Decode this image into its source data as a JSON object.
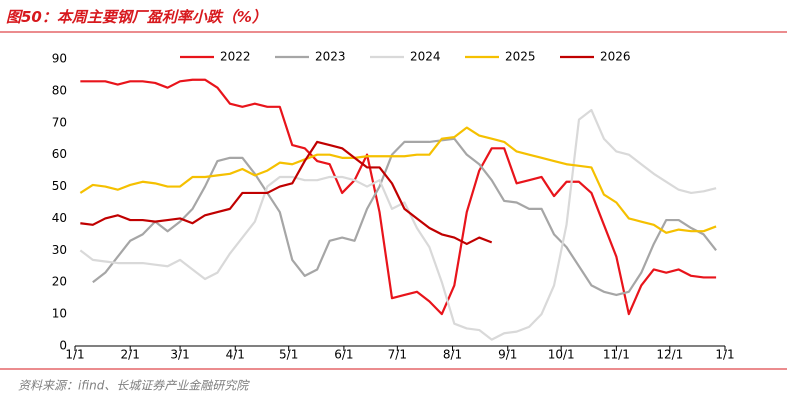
{
  "chart_data": {
    "type": "line",
    "title": "图50：本周主要钢厂盈利率小跌（%）",
    "source": "资料来源：ifind、长城证券产业金融研究院",
    "x": [
      3,
      10,
      17,
      24,
      31,
      38,
      45,
      52,
      59,
      66,
      73,
      80,
      87,
      94,
      101,
      108,
      115,
      122,
      129,
      136,
      143,
      150,
      157,
      164,
      171,
      178,
      185,
      192,
      199,
      206,
      213,
      220,
      227,
      234,
      241,
      248,
      255,
      262,
      269,
      276,
      283,
      290,
      297,
      304,
      311,
      318,
      325,
      332,
      339,
      346,
      353,
      360
    ],
    "xlim": [
      0,
      365
    ],
    "xticks": [
      {
        "value": 0,
        "label": "1/1"
      },
      {
        "value": 31,
        "label": "2/1"
      },
      {
        "value": 59,
        "label": "3/1"
      },
      {
        "value": 90,
        "label": "4/1"
      },
      {
        "value": 120,
        "label": "5/1"
      },
      {
        "value": 151,
        "label": "6/1"
      },
      {
        "value": 181,
        "label": "7/1"
      },
      {
        "value": 212,
        "label": "8/1"
      },
      {
        "value": 243,
        "label": "9/1"
      },
      {
        "value": 273,
        "label": "10/1"
      },
      {
        "value": 304,
        "label": "11/1"
      },
      {
        "value": 334,
        "label": "12/1"
      },
      {
        "value": 365,
        "label": "1/1"
      }
    ],
    "ylim": [
      0,
      90
    ],
    "yticks": [
      0,
      10,
      20,
      30,
      40,
      50,
      60,
      70,
      80,
      90
    ],
    "grid": false,
    "series": [
      {
        "name": "2022",
        "color": "#e8141b",
        "values": [
          83,
          83,
          83,
          82,
          83,
          83,
          82.5,
          81,
          83,
          83.5,
          83.5,
          81,
          76,
          75,
          76,
          75,
          75,
          63,
          62,
          58,
          57,
          48,
          52,
          60,
          42,
          15,
          16,
          17,
          14,
          10,
          19,
          42,
          55,
          62,
          62,
          51,
          52,
          53,
          47,
          51.5,
          51.5,
          48,
          38,
          28,
          10,
          19,
          24,
          23,
          24,
          22,
          21.5,
          21.5
        ]
      },
      {
        "name": "2023",
        "color": "#a6a6a6",
        "values": [
          null,
          20,
          23,
          28,
          33,
          35,
          39,
          36,
          39,
          43,
          50,
          58,
          59,
          59,
          54,
          48,
          42,
          27,
          22,
          24,
          33,
          34,
          33,
          43,
          50,
          60,
          64,
          64,
          64,
          64.5,
          65,
          60,
          57,
          52,
          45.5,
          45,
          43,
          43,
          35,
          31,
          25,
          19,
          17,
          16,
          17,
          23,
          32,
          39.5,
          39.5,
          37,
          35,
          30
        ]
      },
      {
        "name": "2024",
        "color": "#d9d9d9",
        "values": [
          30,
          27,
          26.5,
          26,
          26,
          26,
          25.5,
          25,
          27,
          24,
          21,
          23,
          29,
          34,
          39,
          50,
          53,
          53,
          52,
          52,
          53,
          53,
          52,
          50,
          52,
          43,
          45,
          37,
          31,
          20,
          7,
          5.5,
          5,
          2,
          4,
          4.5,
          6,
          10,
          19,
          38,
          71,
          74,
          65,
          61,
          60,
          57,
          54,
          51.5,
          49,
          48,
          48.5,
          49.5
        ]
      },
      {
        "name": "2025",
        "color": "#f5c000",
        "values": [
          48,
          50.5,
          50,
          49,
          50.5,
          51.5,
          51,
          50,
          50,
          53,
          53,
          53.5,
          54,
          55.5,
          53.5,
          55,
          57.5,
          57,
          58.5,
          60,
          60,
          59,
          59,
          59.5,
          59.5,
          59.5,
          59.5,
          60,
          60,
          65,
          65.5,
          68.5,
          66,
          65,
          64,
          61,
          60,
          59,
          58,
          57,
          56.5,
          56,
          47.5,
          45,
          40,
          39,
          38,
          35.5,
          36.5,
          36,
          36,
          37.5
        ]
      },
      {
        "name": "2026",
        "color": "#c00000",
        "values": [
          38.5,
          38,
          40,
          41,
          39.5,
          39.5,
          39,
          39.5,
          40,
          38.5,
          41,
          42,
          43,
          48,
          48,
          48,
          50,
          51,
          58,
          64,
          63,
          62,
          59,
          56,
          56,
          51,
          43,
          40,
          37,
          35,
          34,
          32,
          34,
          32.5,
          null,
          null,
          null,
          null,
          null,
          null,
          null,
          null,
          null,
          null,
          null,
          null,
          null,
          null,
          null,
          null,
          null,
          null
        ]
      }
    ]
  }
}
